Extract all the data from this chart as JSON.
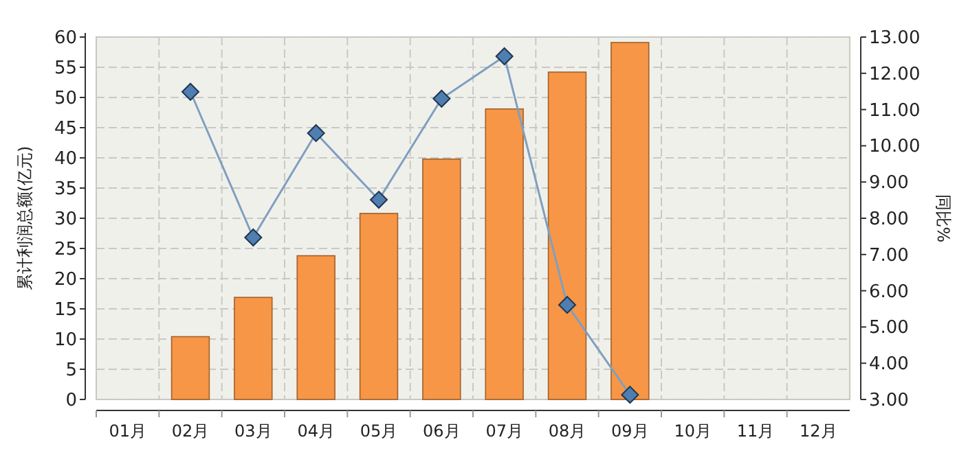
{
  "chart_data": {
    "type": "bar",
    "categories": [
      "01月",
      "02月",
      "03月",
      "04月",
      "05月",
      "06月",
      "07月",
      "08月",
      "09月",
      "10月",
      "11月",
      "12月"
    ],
    "series": [
      {
        "color": "#f79646",
        "values": [
          null,
          10.4,
          16.9,
          23.8,
          30.8,
          39.8,
          48.1,
          54.2,
          59.1,
          null,
          null,
          null
        ]
      },
      {
        "type": "line",
        "axis": "y2",
        "color": "#7f9fc0",
        "marker": "diamond",
        "values": [
          null,
          11.49,
          7.47,
          10.35,
          8.51,
          11.3,
          12.47,
          5.61,
          3.13,
          null,
          null,
          null
        ]
      }
    ],
    "ylabel": "累计利润总额(亿元)",
    "y2label": "同比%",
    "ylim": [
      0,
      60
    ],
    "yticks": [
      0,
      5,
      10,
      15,
      20,
      25,
      30,
      35,
      40,
      45,
      50,
      55,
      60
    ],
    "y2lim": [
      3,
      13
    ],
    "y2ticks": [
      {
        "value": 3,
        "label": "3.00"
      },
      {
        "value": 4,
        "label": "4.00"
      },
      {
        "value": 5,
        "label": "5.00"
      },
      {
        "value": 6,
        "label": "6.00"
      },
      {
        "value": 7,
        "label": "7.00"
      },
      {
        "value": 8,
        "label": "8.00"
      },
      {
        "value": 9,
        "label": "9.00"
      },
      {
        "value": 10,
        "label": "10.00"
      },
      {
        "value": 11,
        "label": "11.00"
      },
      {
        "value": 12,
        "label": "12.00"
      },
      {
        "value": 13,
        "label": "13.00"
      }
    ],
    "grid": true
  }
}
